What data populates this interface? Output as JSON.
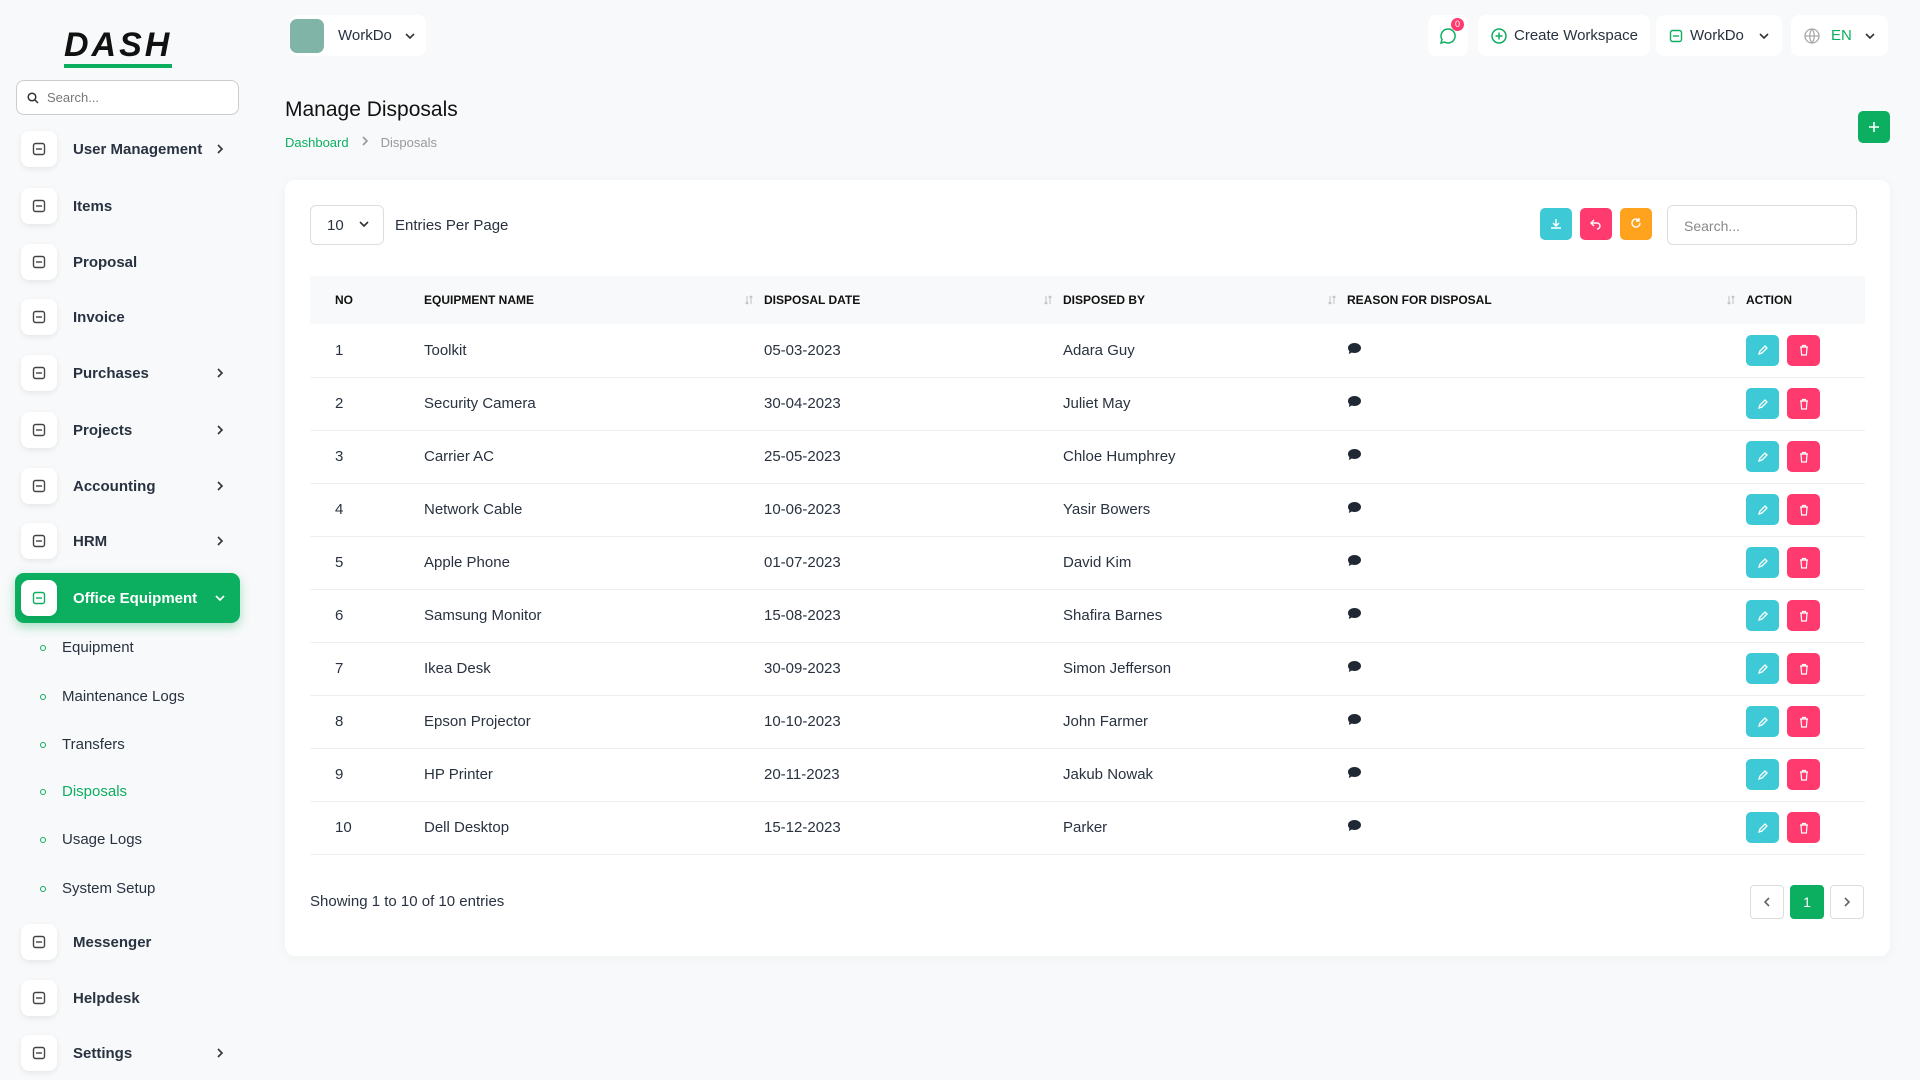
{
  "logo": "DASH",
  "sidebar": {
    "search_placeholder": "Search...",
    "menu": [
      {
        "label": "User Management",
        "arrow": true
      },
      {
        "label": "Items",
        "arrow": false
      },
      {
        "label": "Proposal",
        "arrow": false
      },
      {
        "label": "Invoice",
        "arrow": false
      },
      {
        "label": "Purchases",
        "arrow": true
      },
      {
        "label": "Projects",
        "arrow": true
      },
      {
        "label": "Accounting",
        "arrow": true
      },
      {
        "label": "HRM",
        "arrow": true
      },
      {
        "label": "Office Equipment",
        "arrow": true,
        "active": true,
        "submenu": [
          {
            "label": "Equipment"
          },
          {
            "label": "Maintenance Logs"
          },
          {
            "label": "Transfers"
          },
          {
            "label": "Disposals",
            "active": true
          },
          {
            "label": "Usage Logs"
          },
          {
            "label": "System Setup"
          }
        ]
      },
      {
        "label": "Messenger",
        "arrow": false
      },
      {
        "label": "Helpdesk",
        "arrow": false
      },
      {
        "label": "Settings",
        "arrow": true
      }
    ]
  },
  "header": {
    "workspace": "WorkDo",
    "notifications": "0",
    "create_workspace": "Create Workspace",
    "user": "WorkDo",
    "language": "EN"
  },
  "page": {
    "title": "Manage Disposals",
    "breadcrumb": [
      "Dashboard",
      "Disposals"
    ]
  },
  "table": {
    "per_page": "10",
    "per_page_label": "Entries Per Page",
    "search_placeholder": "Search...",
    "columns": [
      "NO",
      "EQUIPMENT NAME",
      "DISPOSAL DATE",
      "DISPOSED BY",
      "REASON FOR DISPOSAL",
      "ACTION"
    ],
    "rows": [
      [
        "1",
        "Toolkit",
        "05-03-2023",
        "Adara Guy"
      ],
      [
        "2",
        "Security Camera",
        "30-04-2023",
        "Juliet May"
      ],
      [
        "3",
        "Carrier AC",
        "25-05-2023",
        "Chloe Humphrey"
      ],
      [
        "4",
        "Network Cable",
        "10-06-2023",
        "Yasir Bowers"
      ],
      [
        "5",
        "Apple Phone",
        "01-07-2023",
        "David Kim"
      ],
      [
        "6",
        "Samsung Monitor",
        "15-08-2023",
        "Shafira Barnes"
      ],
      [
        "7",
        "Ikea Desk",
        "30-09-2023",
        "Simon Jefferson"
      ],
      [
        "8",
        "Epson Projector",
        "10-10-2023",
        "John Farmer"
      ],
      [
        "9",
        "HP Printer",
        "20-11-2023",
        "Jakub Nowak"
      ],
      [
        "10",
        "Dell Desktop",
        "15-12-2023",
        "Parker"
      ]
    ],
    "footer": "Showing 1 to 10 of 10 entries",
    "current_page": "1"
  }
}
